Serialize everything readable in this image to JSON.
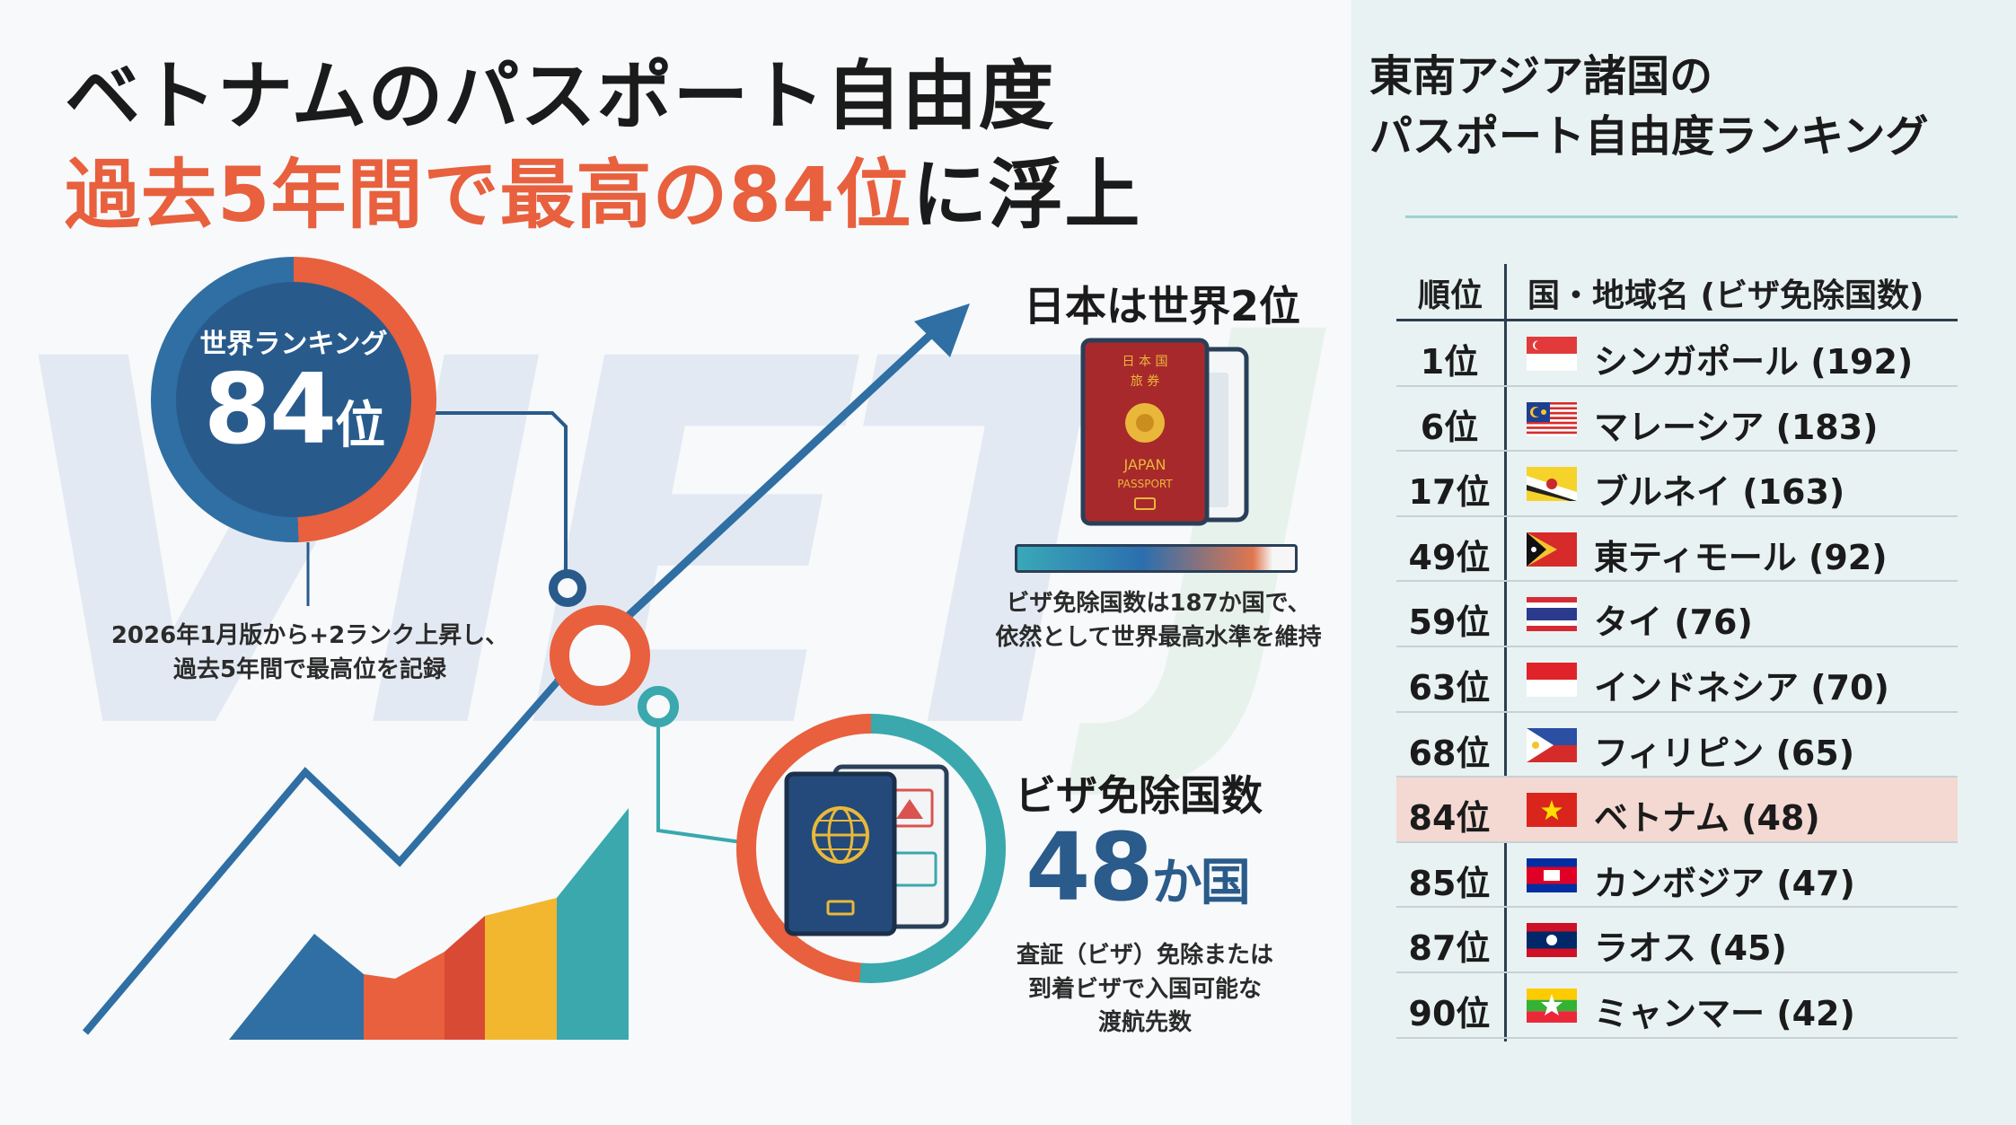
{
  "header": {
    "title_line1": "ベトナムのパスポート自由度",
    "title_line2_highlight": "過去5年間で最高の84位",
    "title_line2_rest": "に浮上"
  },
  "watermark": {
    "text": "VIET",
    "text2": "JO"
  },
  "rank_card": {
    "label": "世界ランキング",
    "value": "84",
    "unit": "位",
    "note_line1": "2026年1月版から+2ランク上昇し、",
    "note_line2": "過去5年間で最高位を記録"
  },
  "japan_card": {
    "heading": "日本は世界2位",
    "passport_line1": "日 本 国",
    "passport_line2": "旅 券",
    "passport_country": "JAPAN",
    "passport_word": "PASSPORT",
    "note_line1": "ビザ免除国数は187か国で、",
    "note_line2": "依然として世界最高水準を維持"
  },
  "visa_card": {
    "heading": "ビザ免除国数",
    "value": "48",
    "unit": "か国",
    "note_line1": "査証（ビザ）免除または",
    "note_line2": "到着ビザで入国可能な",
    "note_line3": "渡航先数"
  },
  "ranking_panel": {
    "title_line1": "東南アジア諸国の",
    "title_line2": "パスポート自由度ランキング",
    "col_rank": "順位",
    "col_country": "国・地域名 (ビザ免除国数)",
    "rows": [
      {
        "rank": "1位",
        "country": "シンガポール (192)",
        "flag": "sg-flag-icon",
        "highlight": false
      },
      {
        "rank": "6位",
        "country": "マレーシア (183)",
        "flag": "my-flag-icon",
        "highlight": false
      },
      {
        "rank": "17位",
        "country": "ブルネイ (163)",
        "flag": "bn-flag-icon",
        "highlight": false
      },
      {
        "rank": "49位",
        "country": "東ティモール (92)",
        "flag": "tl-flag-icon",
        "highlight": false
      },
      {
        "rank": "59位",
        "country": "タイ (76)",
        "flag": "th-flag-icon",
        "highlight": false
      },
      {
        "rank": "63位",
        "country": "インドネシア (70)",
        "flag": "id-flag-icon",
        "highlight": false
      },
      {
        "rank": "68位",
        "country": "フィリピン (65)",
        "flag": "ph-flag-icon",
        "highlight": false
      },
      {
        "rank": "84位",
        "country": "ベトナム (48)",
        "flag": "vn-flag-icon",
        "highlight": true
      },
      {
        "rank": "85位",
        "country": "カンボジア (47)",
        "flag": "kh-flag-icon",
        "highlight": false
      },
      {
        "rank": "87位",
        "country": "ラオス (45)",
        "flag": "la-flag-icon",
        "highlight": false
      },
      {
        "rank": "90位",
        "country": "ミャンマー (42)",
        "flag": "mm-flag-icon",
        "highlight": false
      }
    ]
  },
  "colors": {
    "accent_orange": "#e8603d",
    "navy": "#285b8c",
    "teal": "#3aa8ad",
    "highlight_row": "#f4d8d2",
    "panel_bg": "#e8f2f2"
  }
}
